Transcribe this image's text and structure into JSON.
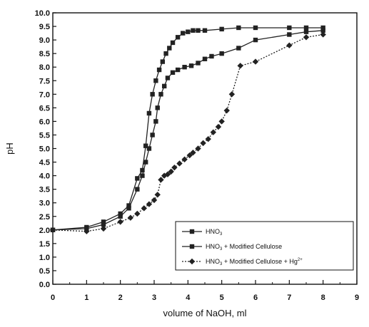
{
  "chart_data": {
    "type": "line",
    "xlabel": "volume of NaOH, ml",
    "ylabel": "pH",
    "xlim": [
      0,
      9
    ],
    "ylim": [
      0,
      10
    ],
    "xticks": [
      "0",
      "1",
      "2",
      "3",
      "4",
      "5",
      "6",
      "7",
      "8",
      "9"
    ],
    "yticks": [
      "0.0",
      "0.5",
      "1.0",
      "1.5",
      "2.0",
      "2.5",
      "3.0",
      "3.5",
      "4.0",
      "4.5",
      "5.0",
      "5.5",
      "6.0",
      "6.5",
      "7.0",
      "7.5",
      "8.0",
      "8.5",
      "9.0",
      "9.5",
      "10.0"
    ],
    "grid": false,
    "legend_position": "bottom-right",
    "series": [
      {
        "name": "HNO3",
        "legend_parts": [
          "HNO",
          "3",
          ""
        ],
        "marker": "square",
        "line_style": "solid",
        "color": "#222222",
        "points": [
          [
            0,
            2.0
          ],
          [
            1,
            2.1
          ],
          [
            1.5,
            2.3
          ],
          [
            2,
            2.6
          ],
          [
            2.25,
            2.9
          ],
          [
            2.5,
            3.9
          ],
          [
            2.65,
            4.2
          ],
          [
            2.75,
            5.1
          ],
          [
            2.85,
            6.3
          ],
          [
            2.95,
            7.0
          ],
          [
            3.05,
            7.5
          ],
          [
            3.15,
            7.9
          ],
          [
            3.25,
            8.2
          ],
          [
            3.35,
            8.5
          ],
          [
            3.45,
            8.7
          ],
          [
            3.55,
            8.9
          ],
          [
            3.7,
            9.1
          ],
          [
            3.85,
            9.25
          ],
          [
            4.0,
            9.3
          ],
          [
            4.15,
            9.35
          ],
          [
            4.3,
            9.35
          ],
          [
            4.5,
            9.35
          ],
          [
            5.0,
            9.4
          ],
          [
            5.5,
            9.45
          ],
          [
            6.0,
            9.45
          ],
          [
            7.0,
            9.45
          ],
          [
            7.5,
            9.45
          ],
          [
            8.0,
            9.45
          ]
        ]
      },
      {
        "name": "HNO3 + Modified Cellulose",
        "legend_parts": [
          "HNO",
          "3",
          " + Modified Cellulose"
        ],
        "marker": "square",
        "line_style": "solid",
        "color": "#222222",
        "points": [
          [
            0,
            2.0
          ],
          [
            1,
            2.05
          ],
          [
            1.5,
            2.2
          ],
          [
            2,
            2.5
          ],
          [
            2.25,
            2.8
          ],
          [
            2.5,
            3.5
          ],
          [
            2.65,
            4.0
          ],
          [
            2.75,
            4.5
          ],
          [
            2.85,
            5.0
          ],
          [
            2.95,
            5.5
          ],
          [
            3.05,
            6.0
          ],
          [
            3.1,
            6.5
          ],
          [
            3.2,
            7.0
          ],
          [
            3.3,
            7.3
          ],
          [
            3.4,
            7.6
          ],
          [
            3.55,
            7.8
          ],
          [
            3.7,
            7.9
          ],
          [
            3.9,
            8.0
          ],
          [
            4.1,
            8.05
          ],
          [
            4.3,
            8.15
          ],
          [
            4.5,
            8.3
          ],
          [
            4.7,
            8.4
          ],
          [
            5.0,
            8.5
          ],
          [
            5.5,
            8.7
          ],
          [
            6.0,
            9.0
          ],
          [
            7.0,
            9.2
          ],
          [
            7.5,
            9.3
          ],
          [
            8.0,
            9.35
          ]
        ]
      },
      {
        "name": "HNO3 + Modified Cellulose + Hg2+",
        "legend_parts": [
          "HNO",
          "3",
          " + Modified Cellulose + Hg",
          "2+"
        ],
        "marker": "diamond",
        "line_style": "dotted",
        "color": "#222222",
        "points": [
          [
            0,
            2.0
          ],
          [
            1,
            1.95
          ],
          [
            1.5,
            2.05
          ],
          [
            2,
            2.3
          ],
          [
            2.3,
            2.45
          ],
          [
            2.5,
            2.6
          ],
          [
            2.7,
            2.8
          ],
          [
            2.85,
            2.95
          ],
          [
            3.0,
            3.1
          ],
          [
            3.1,
            3.3
          ],
          [
            3.2,
            3.85
          ],
          [
            3.3,
            4.0
          ],
          [
            3.4,
            4.05
          ],
          [
            3.5,
            4.15
          ],
          [
            3.6,
            4.3
          ],
          [
            3.75,
            4.45
          ],
          [
            3.9,
            4.6
          ],
          [
            4.05,
            4.75
          ],
          [
            4.15,
            4.85
          ],
          [
            4.3,
            5.0
          ],
          [
            4.45,
            5.2
          ],
          [
            4.6,
            5.35
          ],
          [
            4.75,
            5.6
          ],
          [
            4.9,
            5.8
          ],
          [
            5.0,
            6.0
          ],
          [
            5.15,
            6.4
          ],
          [
            5.3,
            7.0
          ],
          [
            5.55,
            8.05
          ],
          [
            6.0,
            8.2
          ],
          [
            7.0,
            8.8
          ],
          [
            7.5,
            9.1
          ],
          [
            8.0,
            9.2
          ]
        ]
      }
    ]
  }
}
